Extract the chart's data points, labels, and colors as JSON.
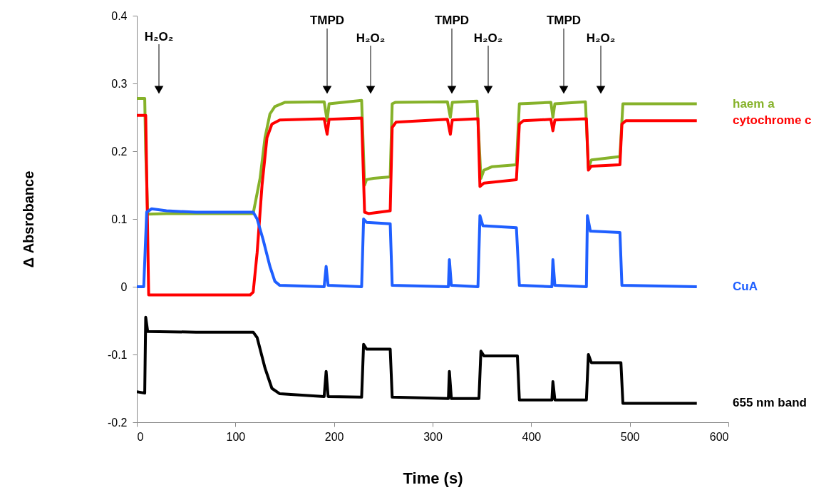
{
  "chart_data": {
    "type": "line",
    "xlabel": "Time (s)",
    "ylabel": "Δ Absrobance",
    "xlim": [
      0,
      600
    ],
    "xticks": [
      0,
      100,
      200,
      300,
      400,
      500,
      600
    ],
    "ylim": [
      -0.2,
      0.4
    ],
    "yticks": [
      -0.2,
      -0.1,
      0,
      0.1,
      0.2,
      0.3,
      0.4
    ],
    "grid": false,
    "series": [
      {
        "name": "haem a",
        "color": "#86b22a",
        "x": [
          0,
          8,
          9,
          11,
          30,
          60,
          118,
          125,
          130,
          135,
          140,
          150,
          190,
          193,
          195,
          228,
          231,
          233,
          240,
          257,
          259,
          262,
          315,
          318,
          320,
          345,
          349,
          352,
          360,
          385,
          388,
          420,
          422,
          424,
          455,
          458,
          461,
          490,
          493,
          568
        ],
        "values": [
          0.278,
          0.278,
          0.2,
          0.107,
          0.108,
          0.108,
          0.108,
          0.16,
          0.22,
          0.255,
          0.266,
          0.272,
          0.273,
          0.245,
          0.27,
          0.275,
          0.15,
          0.158,
          0.16,
          0.162,
          0.27,
          0.272,
          0.273,
          0.25,
          0.272,
          0.274,
          0.16,
          0.172,
          0.177,
          0.18,
          0.27,
          0.272,
          0.25,
          0.27,
          0.273,
          0.175,
          0.187,
          0.192,
          0.27,
          0.27
        ]
      },
      {
        "name": "cytochrome c",
        "color": "#ff0000",
        "x": [
          0,
          9,
          12,
          60,
          115,
          118,
          122,
          127,
          132,
          137,
          145,
          190,
          193,
          195,
          228,
          231,
          235,
          257,
          259,
          263,
          315,
          318,
          320,
          346,
          348,
          352,
          385,
          388,
          392,
          420,
          422,
          424,
          456,
          458,
          461,
          490,
          492,
          496,
          568
        ],
        "values": [
          0.253,
          0.253,
          -0.012,
          -0.012,
          -0.012,
          -0.008,
          0.05,
          0.15,
          0.22,
          0.24,
          0.246,
          0.248,
          0.225,
          0.247,
          0.249,
          0.11,
          0.108,
          0.112,
          0.235,
          0.243,
          0.247,
          0.225,
          0.246,
          0.248,
          0.148,
          0.153,
          0.158,
          0.24,
          0.245,
          0.247,
          0.23,
          0.246,
          0.248,
          0.172,
          0.178,
          0.18,
          0.24,
          0.245,
          0.245
        ]
      },
      {
        "name": "CuA",
        "color": "#1f5fff",
        "x": [
          0,
          7,
          10,
          15,
          30,
          60,
          118,
          122,
          128,
          135,
          140,
          145,
          190,
          192,
          194,
          228,
          230,
          233,
          257,
          259,
          316,
          317,
          319,
          346,
          348,
          351,
          385,
          388,
          421,
          422,
          424,
          456,
          457,
          460,
          490,
          492,
          568
        ],
        "values": [
          0,
          0,
          0.11,
          0.115,
          0.112,
          0.11,
          0.11,
          0.1,
          0.07,
          0.03,
          0.008,
          0.002,
          0,
          0.03,
          0.002,
          0,
          0.1,
          0.095,
          0.093,
          0.002,
          0,
          0.04,
          0.002,
          0,
          0.105,
          0.09,
          0.087,
          0.002,
          0,
          0.04,
          0.002,
          0,
          0.105,
          0.082,
          0.08,
          0.002,
          0
        ]
      },
      {
        "name": "655 nm band",
        "color": "#000000",
        "x": [
          0,
          8,
          9,
          11,
          60,
          118,
          122,
          130,
          137,
          145,
          190,
          192,
          194,
          228,
          230,
          233,
          257,
          259,
          316,
          317,
          319,
          347,
          349,
          352,
          386,
          388,
          421,
          422,
          424,
          456,
          458,
          461,
          491,
          493,
          568
        ],
        "values": [
          -0.155,
          -0.157,
          -0.045,
          -0.066,
          -0.067,
          -0.067,
          -0.075,
          -0.12,
          -0.15,
          -0.158,
          -0.162,
          -0.125,
          -0.162,
          -0.163,
          -0.085,
          -0.092,
          -0.092,
          -0.163,
          -0.165,
          -0.125,
          -0.165,
          -0.165,
          -0.095,
          -0.102,
          -0.102,
          -0.167,
          -0.167,
          -0.14,
          -0.167,
          -0.167,
          -0.1,
          -0.112,
          -0.112,
          -0.172,
          -0.172
        ]
      }
    ],
    "annotations": [
      "H₂O₂",
      "TMPD",
      "H₂O₂",
      "TMPD",
      "H₂O₂",
      "TMPD",
      "H₂O₂"
    ]
  }
}
